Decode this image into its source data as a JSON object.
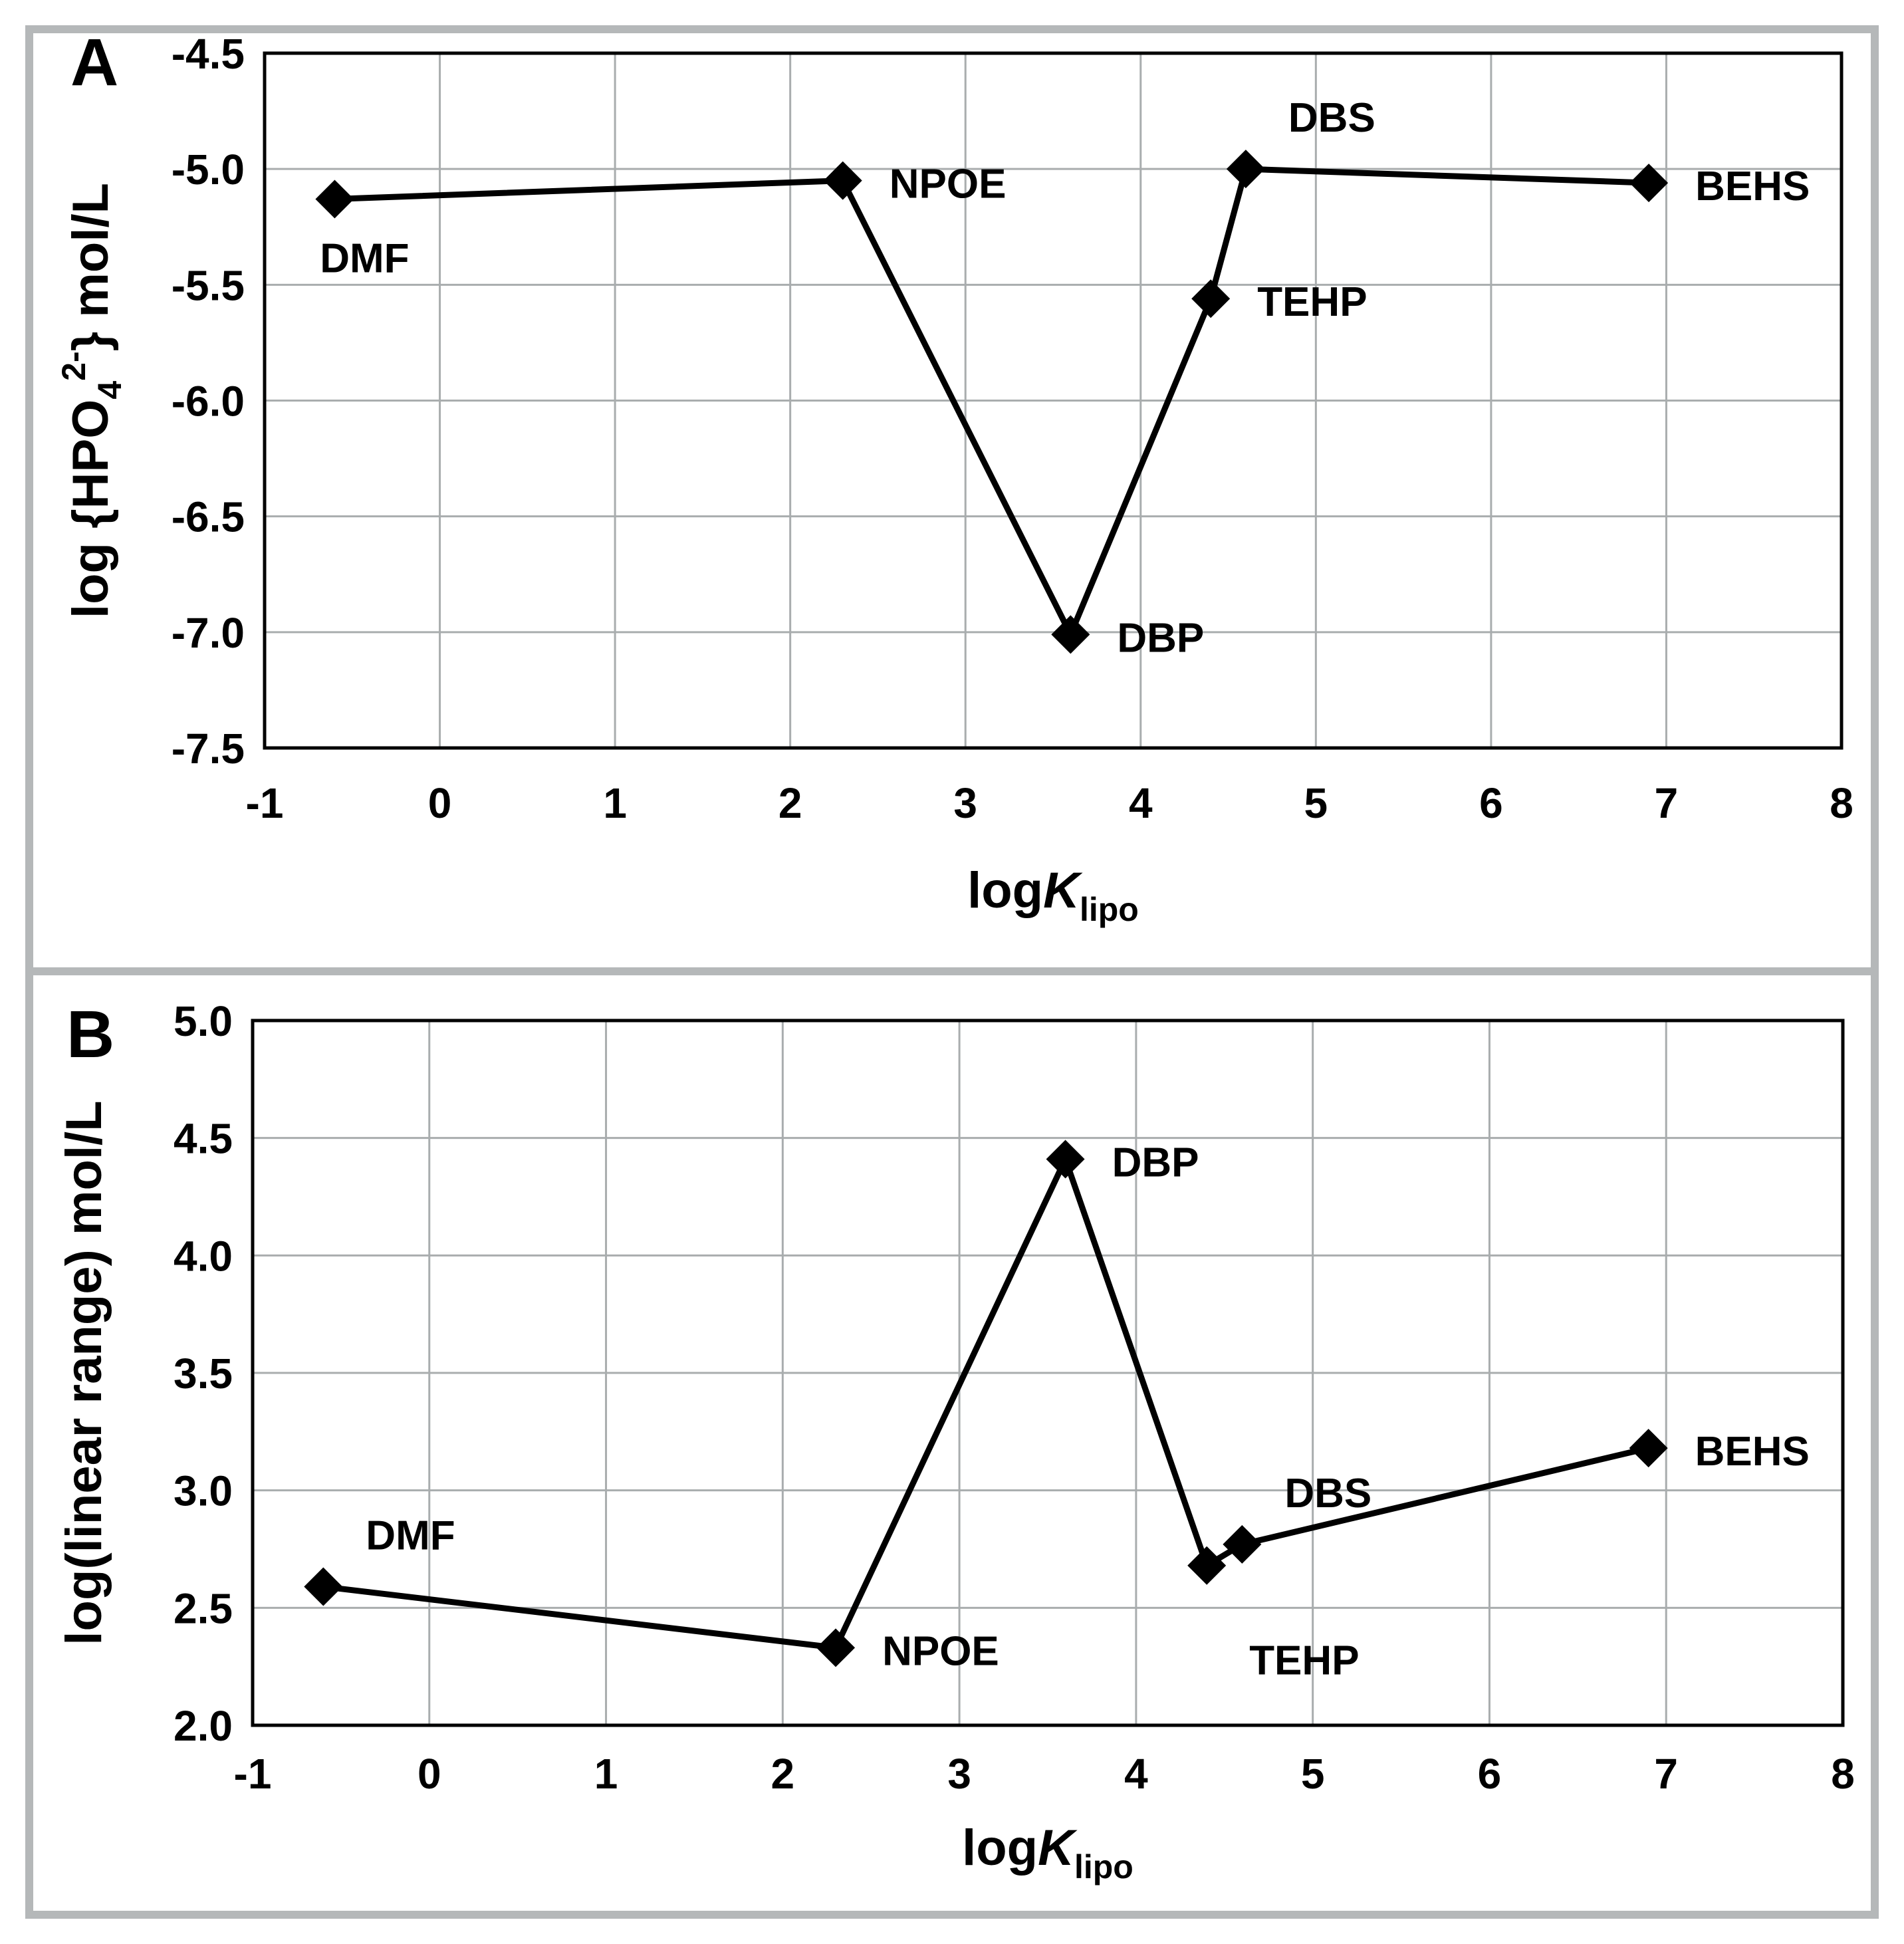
{
  "figure": {
    "background": "#ffffff",
    "frame_color": "#b5b8b9",
    "grid_color": "#a9adae",
    "plot_border_color": "#000000",
    "line_color": "#000000",
    "marker_color": "#000000",
    "text_color": "#000000",
    "marker_shape": "diamond"
  },
  "chart_data": [
    {
      "panel_label": "A",
      "type": "line",
      "title": "",
      "xlabel_parts": [
        {
          "t": "log",
          "s": "n"
        },
        {
          "t": "K",
          "s": "i"
        },
        {
          "t": "lipo",
          "s": "sub"
        }
      ],
      "ylabel_parts": [
        {
          "t": "log {HPO",
          "s": "n"
        },
        {
          "t": "4",
          "s": "sub"
        },
        {
          "t": "2-",
          "s": "sup"
        },
        {
          "t": "} mol/L",
          "s": "n"
        }
      ],
      "xlim": [
        -1,
        8
      ],
      "ylim": [
        -7.5,
        -4.5
      ],
      "xticks": [
        {
          "v": -1,
          "t": "-1"
        },
        {
          "v": 0,
          "t": "0"
        },
        {
          "v": 1,
          "t": "1"
        },
        {
          "v": 2,
          "t": "2"
        },
        {
          "v": 3,
          "t": "3"
        },
        {
          "v": 4,
          "t": "4"
        },
        {
          "v": 5,
          "t": "5"
        },
        {
          "v": 6,
          "t": "6"
        },
        {
          "v": 7,
          "t": "7"
        },
        {
          "v": 8,
          "t": "8"
        }
      ],
      "yticks": [
        {
          "v": -4.5,
          "t": "-4.5"
        },
        {
          "v": -5.0,
          "t": "-5.0"
        },
        {
          "v": -5.5,
          "t": "-5.5"
        },
        {
          "v": -6.0,
          "t": "-6.0"
        },
        {
          "v": -6.5,
          "t": "-6.5"
        },
        {
          "v": -7.0,
          "t": "-7.0"
        },
        {
          "v": -7.5,
          "t": "-7.5"
        }
      ],
      "grid": true,
      "legend": "none",
      "series": [
        {
          "name": "detection-limit-vs-lipophilicity",
          "points": [
            {
              "x": -0.6,
              "y": -5.13,
              "label": "DMF",
              "label_pos": "below"
            },
            {
              "x": 2.3,
              "y": -5.05,
              "label": "NPOE",
              "label_pos": "right"
            },
            {
              "x": 3.6,
              "y": -7.01,
              "label": "DBP",
              "label_pos": "right"
            },
            {
              "x": 4.4,
              "y": -5.56,
              "label": "TEHP",
              "label_pos": "right"
            },
            {
              "x": 4.6,
              "y": -5.0,
              "label": "DBS",
              "label_pos": "above-right"
            },
            {
              "x": 6.9,
              "y": -5.06,
              "label": "BEHS",
              "label_pos": "right"
            }
          ]
        }
      ]
    },
    {
      "panel_label": "B",
      "type": "line",
      "title": "",
      "xlabel_parts": [
        {
          "t": "log",
          "s": "n"
        },
        {
          "t": "K",
          "s": "i"
        },
        {
          "t": "lipo",
          "s": "sub"
        }
      ],
      "ylabel_parts": [
        {
          "t": "log(linear range) mol/L",
          "s": "n"
        }
      ],
      "xlim": [
        -1,
        8
      ],
      "ylim": [
        2.0,
        5.0
      ],
      "xticks": [
        {
          "v": -1,
          "t": "-1"
        },
        {
          "v": 0,
          "t": "0"
        },
        {
          "v": 1,
          "t": "1"
        },
        {
          "v": 2,
          "t": "2"
        },
        {
          "v": 3,
          "t": "3"
        },
        {
          "v": 4,
          "t": "4"
        },
        {
          "v": 5,
          "t": "5"
        },
        {
          "v": 6,
          "t": "6"
        },
        {
          "v": 7,
          "t": "7"
        },
        {
          "v": 8,
          "t": "8"
        }
      ],
      "yticks": [
        {
          "v": 5.0,
          "t": "5.0"
        },
        {
          "v": 4.5,
          "t": "4.5"
        },
        {
          "v": 4.0,
          "t": "4.0"
        },
        {
          "v": 3.5,
          "t": "3.5"
        },
        {
          "v": 3.0,
          "t": "3.0"
        },
        {
          "v": 2.5,
          "t": "2.5"
        },
        {
          "v": 2.0,
          "t": "2.0"
        }
      ],
      "grid": true,
      "legend": "none",
      "series": [
        {
          "name": "linear-range-vs-lipophilicity",
          "points": [
            {
              "x": -0.6,
              "y": 2.59,
              "label": "DMF",
              "label_pos": "above-right"
            },
            {
              "x": 2.3,
              "y": 2.33,
              "label": "NPOE",
              "label_pos": "right"
            },
            {
              "x": 3.6,
              "y": 4.41,
              "label": "DBP",
              "label_pos": "right"
            },
            {
              "x": 4.4,
              "y": 2.68,
              "label": "TEHP",
              "label_pos": "below-right"
            },
            {
              "x": 4.6,
              "y": 2.77,
              "label": "DBS",
              "label_pos": "above-right"
            },
            {
              "x": 6.9,
              "y": 3.18,
              "label": "BEHS",
              "label_pos": "right"
            }
          ]
        }
      ]
    }
  ]
}
